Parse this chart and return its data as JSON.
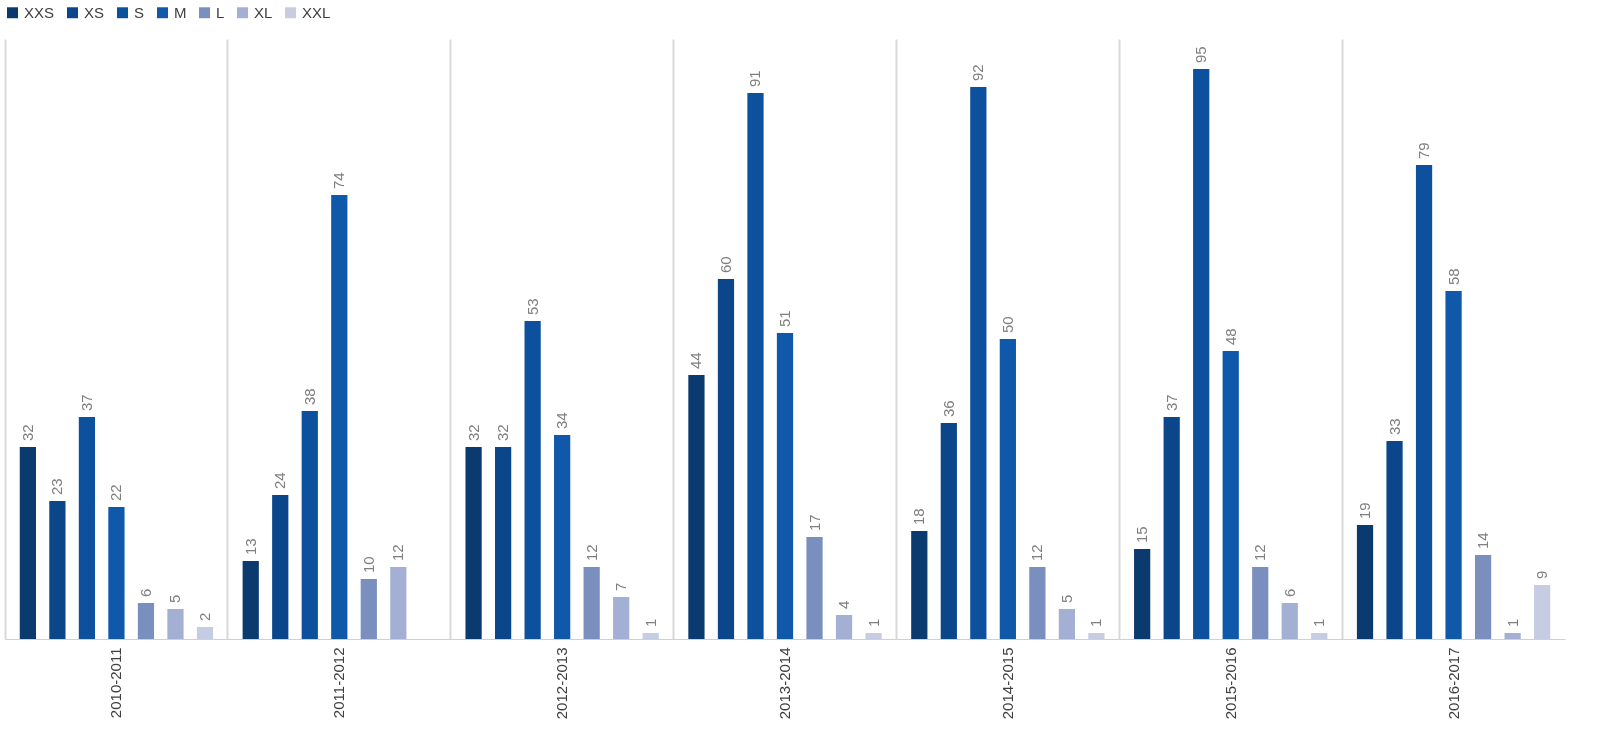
{
  "chart_data": {
    "type": "bar",
    "categories": [
      "2010-2011",
      "2011-2012",
      "2012-2013",
      "2013-2014",
      "2014-2015",
      "2015-2016",
      "2016-2017"
    ],
    "series": [
      {
        "name": "XXS",
        "color": "#0b3a6e",
        "values": [
          32,
          13,
          32,
          44,
          18,
          15,
          19
        ]
      },
      {
        "name": "XS",
        "color": "#0c468a",
        "values": [
          23,
          24,
          32,
          60,
          36,
          37,
          33
        ]
      },
      {
        "name": "S",
        "color": "#0d509e",
        "values": [
          37,
          38,
          53,
          91,
          92,
          95,
          79
        ]
      },
      {
        "name": "M",
        "color": "#0f58aa",
        "values": [
          22,
          74,
          34,
          51,
          50,
          48,
          58
        ]
      },
      {
        "name": "L",
        "color": "#7b8fbf",
        "values": [
          6,
          10,
          12,
          17,
          12,
          12,
          14
        ]
      },
      {
        "name": "XL",
        "color": "#a3b0d3",
        "values": [
          5,
          12,
          7,
          4,
          5,
          6,
          1
        ]
      },
      {
        "name": "XXL",
        "color": "#c6cde3",
        "values": [
          2,
          null,
          1,
          1,
          1,
          1,
          9
        ]
      }
    ],
    "ylim": [
      0,
      100
    ],
    "data_labels": true,
    "legend": "top",
    "grid": "x",
    "tick_labels": "x"
  }
}
